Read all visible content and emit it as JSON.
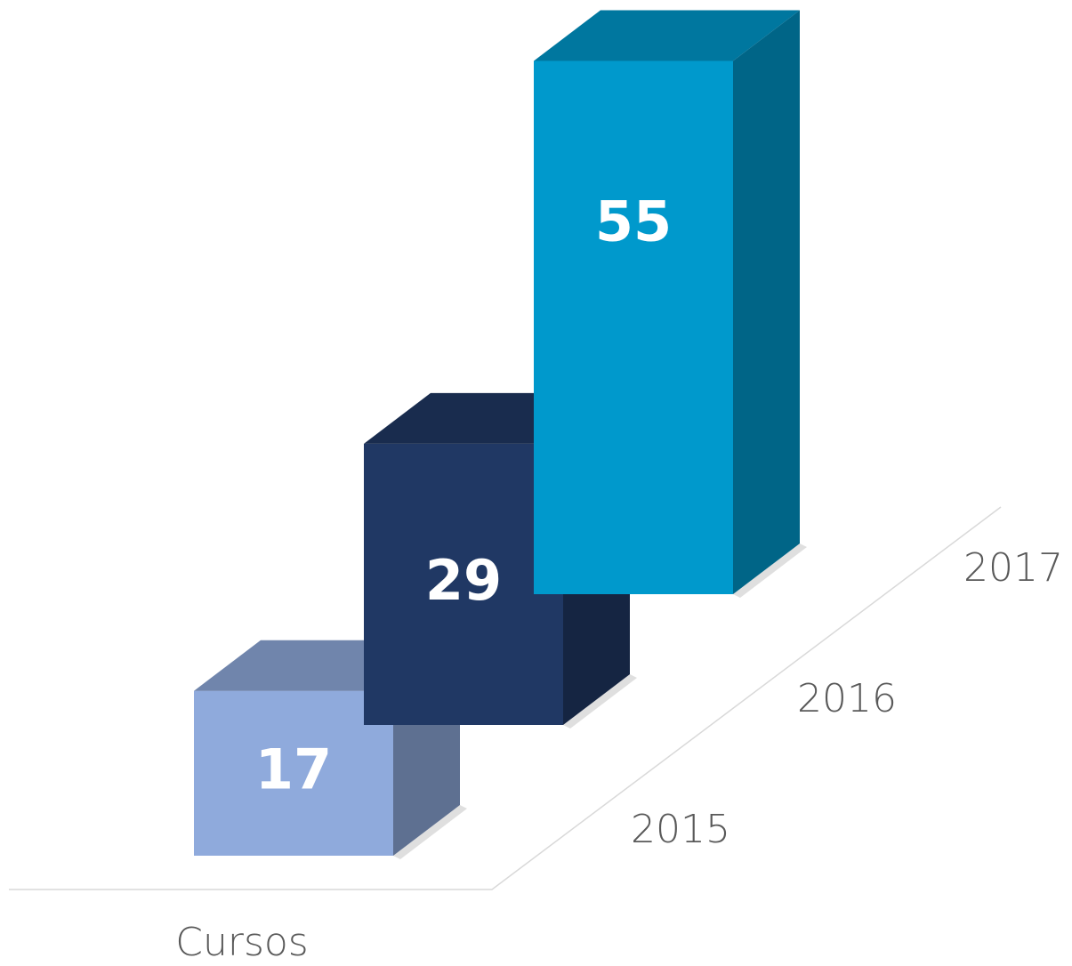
{
  "chart_data": {
    "type": "bar3d",
    "categories": [
      "Cursos"
    ],
    "series": [
      {
        "name": "2015",
        "color": "#8faadc",
        "values": [
          17
        ]
      },
      {
        "name": "2016",
        "color": "#203864",
        "values": [
          29
        ]
      },
      {
        "name": "2017",
        "color": "#0099cc",
        "values": [
          55
        ]
      }
    ]
  }
}
